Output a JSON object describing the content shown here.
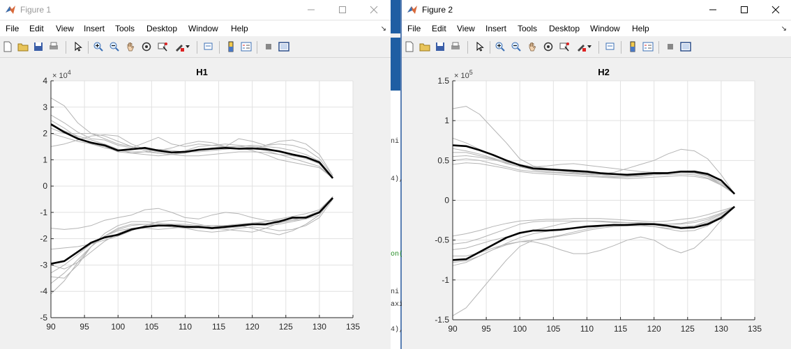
{
  "windows": [
    {
      "title": "Figure 1",
      "active": false,
      "menus": [
        "File",
        "Edit",
        "View",
        "Insert",
        "Tools",
        "Desktop",
        "Window",
        "Help"
      ],
      "plot": {
        "title": "H1",
        "exponent_base": "× 10",
        "exponent_power": "4",
        "xlim": [
          90,
          135
        ],
        "ylim": [
          -5,
          4
        ],
        "xticks": [
          90,
          95,
          100,
          105,
          110,
          115,
          120,
          125,
          130,
          135
        ],
        "xtick_labels": [
          "90",
          "95",
          "100",
          "105",
          "110",
          "115",
          "120",
          "125",
          "130",
          "135"
        ],
        "yticks": [
          -5,
          -4,
          -3,
          -2,
          -1,
          0,
          1,
          2,
          3,
          4
        ],
        "ytick_labels": [
          "-5",
          "-4",
          "-3",
          "-2",
          "-1",
          "0",
          "1",
          "2",
          "3",
          "4"
        ]
      }
    },
    {
      "title": "Figure 2",
      "active": true,
      "menus": [
        "File",
        "Edit",
        "View",
        "Insert",
        "Tools",
        "Desktop",
        "Window",
        "Help"
      ],
      "plot": {
        "title": "H2",
        "exponent_base": "× 10",
        "exponent_power": "5",
        "xlim": [
          90,
          135
        ],
        "ylim": [
          -1.5,
          1.5
        ],
        "xticks": [
          90,
          95,
          100,
          105,
          110,
          115,
          120,
          125,
          130,
          135
        ],
        "xtick_labels": [
          "90",
          "95",
          "100",
          "105",
          "110",
          "115",
          "120",
          "125",
          "130",
          "135"
        ],
        "yticks": [
          -1.5,
          -1,
          -0.5,
          0,
          0.5,
          1,
          1.5
        ],
        "ytick_labels": [
          "-1.5",
          "-1",
          "-0.5",
          "0",
          "0.5",
          "1",
          "1.5"
        ]
      }
    }
  ],
  "background_code_fragments": [
    "ni",
    "4),",
    "on(",
    "ni",
    "axi",
    "4),"
  ],
  "chart_data": [
    {
      "type": "line",
      "title": "H1",
      "xlim": [
        90,
        135
      ],
      "ylim": [
        -5,
        4
      ],
      "y_multiplier": "× 10^4",
      "grid": true,
      "colors": {
        "mean": "#000000",
        "individual": "#b4b4b4"
      },
      "x": [
        90,
        92,
        94,
        96,
        98,
        100,
        102,
        104,
        106,
        108,
        110,
        112,
        114,
        116,
        118,
        120,
        122,
        124,
        126,
        128,
        130,
        132
      ],
      "series": [
        {
          "role": "mean",
          "values": [
            2.35,
            2.05,
            1.8,
            1.65,
            1.55,
            1.35,
            1.4,
            1.45,
            1.35,
            1.28,
            1.3,
            1.38,
            1.42,
            1.45,
            1.42,
            1.43,
            1.4,
            1.32,
            1.2,
            1.1,
            0.9,
            0.3
          ]
        },
        {
          "role": "mean",
          "values": [
            -2.95,
            -2.85,
            -2.5,
            -2.15,
            -1.95,
            -1.85,
            -1.65,
            -1.55,
            -1.5,
            -1.5,
            -1.55,
            -1.55,
            -1.6,
            -1.55,
            -1.5,
            -1.45,
            -1.45,
            -1.35,
            -1.2,
            -1.2,
            -1.0,
            -0.45
          ]
        },
        {
          "role": "individual",
          "values": [
            3.35,
            3.05,
            2.4,
            2.0,
            1.8,
            1.6,
            1.5,
            1.35,
            1.25,
            1.2,
            1.15,
            1.15,
            1.2,
            1.25,
            1.3,
            1.3,
            1.28,
            1.2,
            1.15,
            1.05,
            0.85,
            0.3
          ]
        },
        {
          "role": "individual",
          "values": [
            2.7,
            2.4,
            2.05,
            1.8,
            1.75,
            1.55,
            1.45,
            1.65,
            1.85,
            1.6,
            1.5,
            1.6,
            1.55,
            1.5,
            1.8,
            1.7,
            1.55,
            1.6,
            1.55,
            1.4,
            1.05,
            0.4
          ]
        },
        {
          "role": "individual",
          "values": [
            2.0,
            1.85,
            1.7,
            1.6,
            1.5,
            1.3,
            1.25,
            1.2,
            1.15,
            1.2,
            1.3,
            1.35,
            1.4,
            1.45,
            1.5,
            1.55,
            1.5,
            1.45,
            1.35,
            1.2,
            0.95,
            0.35
          ]
        },
        {
          "role": "individual",
          "values": [
            1.5,
            1.6,
            1.75,
            1.9,
            1.95,
            1.9,
            1.6,
            1.4,
            1.3,
            1.25,
            1.35,
            1.5,
            1.55,
            1.6,
            1.55,
            1.5,
            1.45,
            1.3,
            1.2,
            1.05,
            0.85,
            0.3
          ]
        },
        {
          "role": "individual",
          "values": [
            2.3,
            2.1,
            1.9,
            1.75,
            1.6,
            1.4,
            1.25,
            1.3,
            1.4,
            1.35,
            1.3,
            1.3,
            1.35,
            1.4,
            1.45,
            1.35,
            1.2,
            1.0,
            0.9,
            0.8,
            0.7,
            0.3
          ]
        },
        {
          "role": "individual",
          "values": [
            2.2,
            2.0,
            2.0,
            2.0,
            1.9,
            1.7,
            1.5,
            1.4,
            1.35,
            1.45,
            1.6,
            1.7,
            1.65,
            1.5,
            1.4,
            1.4,
            1.55,
            1.7,
            1.75,
            1.6,
            1.2,
            0.4
          ]
        },
        {
          "role": "individual",
          "values": [
            2.5,
            2.2,
            1.85,
            1.6,
            1.45,
            1.35,
            1.3,
            1.3,
            1.25,
            1.2,
            1.25,
            1.35,
            1.45,
            1.5,
            1.5,
            1.45,
            1.35,
            1.2,
            1.05,
            0.9,
            0.75,
            0.3
          ]
        },
        {
          "role": "individual",
          "values": [
            -3.3,
            -3.0,
            -2.6,
            -2.2,
            -1.9,
            -1.65,
            -1.5,
            -1.45,
            -1.45,
            -1.5,
            -1.6,
            -1.7,
            -1.75,
            -1.7,
            -1.6,
            -1.55,
            -1.6,
            -1.7,
            -1.65,
            -1.5,
            -1.2,
            -0.5
          ]
        },
        {
          "role": "individual",
          "values": [
            -2.4,
            -2.35,
            -2.3,
            -2.2,
            -2.05,
            -1.9,
            -1.7,
            -1.5,
            -1.35,
            -1.3,
            -1.35,
            -1.45,
            -1.55,
            -1.6,
            -1.55,
            -1.45,
            -1.35,
            -1.25,
            -1.15,
            -1.05,
            -0.9,
            -0.4
          ]
        },
        {
          "role": "individual",
          "values": [
            -3.7,
            -3.3,
            -2.8,
            -2.3,
            -1.9,
            -1.7,
            -1.6,
            -1.55,
            -1.5,
            -1.45,
            -1.45,
            -1.5,
            -1.5,
            -1.5,
            -1.45,
            -1.45,
            -1.5,
            -1.45,
            -1.35,
            -1.25,
            -1.0,
            -0.4
          ]
        },
        {
          "role": "individual",
          "values": [
            -1.6,
            -1.65,
            -1.6,
            -1.5,
            -1.3,
            -1.2,
            -1.1,
            -0.9,
            -0.85,
            -1.0,
            -1.2,
            -1.25,
            -1.1,
            -1.0,
            -1.05,
            -1.2,
            -1.3,
            -1.35,
            -1.3,
            -1.15,
            -0.95,
            -0.4
          ]
        },
        {
          "role": "individual",
          "values": [
            -3.0,
            -3.15,
            -2.9,
            -2.5,
            -2.1,
            -1.8,
            -1.6,
            -1.6,
            -1.65,
            -1.6,
            -1.55,
            -1.55,
            -1.6,
            -1.65,
            -1.7,
            -1.75,
            -1.6,
            -1.4,
            -1.3,
            -1.25,
            -1.1,
            -0.45
          ]
        },
        {
          "role": "individual",
          "values": [
            -3.45,
            -3.5,
            -3.0,
            -2.3,
            -1.8,
            -1.5,
            -1.35,
            -1.35,
            -1.4,
            -1.45,
            -1.5,
            -1.55,
            -1.55,
            -1.5,
            -1.45,
            -1.4,
            -1.35,
            -1.3,
            -1.25,
            -1.2,
            -1.0,
            -0.4
          ]
        },
        {
          "role": "individual",
          "values": [
            -4.1,
            -3.6,
            -2.9,
            -2.3,
            -1.9,
            -1.6,
            -1.45,
            -1.45,
            -1.5,
            -1.55,
            -1.6,
            -1.6,
            -1.55,
            -1.5,
            -1.5,
            -1.6,
            -1.75,
            -1.85,
            -1.7,
            -1.45,
            -1.1,
            -0.45
          ]
        }
      ]
    },
    {
      "type": "line",
      "title": "H2",
      "xlim": [
        90,
        135
      ],
      "ylim": [
        -1.5,
        1.5
      ],
      "y_multiplier": "× 10^5",
      "grid": true,
      "colors": {
        "mean": "#000000",
        "individual": "#b4b4b4"
      },
      "x": [
        90,
        92,
        94,
        96,
        98,
        100,
        102,
        104,
        106,
        108,
        110,
        112,
        114,
        116,
        118,
        120,
        122,
        124,
        126,
        128,
        130,
        132
      ],
      "series": [
        {
          "role": "mean",
          "values": [
            0.69,
            0.68,
            0.63,
            0.57,
            0.5,
            0.44,
            0.4,
            0.39,
            0.38,
            0.37,
            0.36,
            0.34,
            0.33,
            0.32,
            0.33,
            0.34,
            0.34,
            0.36,
            0.36,
            0.33,
            0.25,
            0.08
          ]
        },
        {
          "role": "mean",
          "values": [
            -0.75,
            -0.74,
            -0.65,
            -0.56,
            -0.47,
            -0.41,
            -0.38,
            -0.38,
            -0.37,
            -0.35,
            -0.33,
            -0.32,
            -0.31,
            -0.31,
            -0.3,
            -0.3,
            -0.32,
            -0.35,
            -0.34,
            -0.3,
            -0.22,
            -0.08
          ]
        },
        {
          "role": "individual",
          "values": [
            1.15,
            1.18,
            1.08,
            0.9,
            0.72,
            0.52,
            0.43,
            0.4,
            0.38,
            0.36,
            0.35,
            0.33,
            0.32,
            0.31,
            0.32,
            0.33,
            0.34,
            0.35,
            0.35,
            0.31,
            0.22,
            0.08
          ]
        },
        {
          "role": "individual",
          "values": [
            0.78,
            0.72,
            0.64,
            0.56,
            0.5,
            0.45,
            0.42,
            0.4,
            0.38,
            0.36,
            0.34,
            0.33,
            0.35,
            0.4,
            0.45,
            0.5,
            0.58,
            0.64,
            0.62,
            0.52,
            0.32,
            0.08
          ]
        },
        {
          "role": "individual",
          "values": [
            0.5,
            0.52,
            0.5,
            0.46,
            0.42,
            0.38,
            0.36,
            0.35,
            0.34,
            0.33,
            0.32,
            0.3,
            0.29,
            0.29,
            0.3,
            0.32,
            0.34,
            0.36,
            0.35,
            0.3,
            0.2,
            0.08
          ]
        },
        {
          "role": "individual",
          "values": [
            0.6,
            0.6,
            0.56,
            0.52,
            0.46,
            0.42,
            0.39,
            0.38,
            0.37,
            0.35,
            0.33,
            0.32,
            0.3,
            0.3,
            0.31,
            0.32,
            0.32,
            0.33,
            0.32,
            0.28,
            0.2,
            0.08
          ]
        },
        {
          "role": "individual",
          "values": [
            0.65,
            0.62,
            0.58,
            0.53,
            0.48,
            0.44,
            0.42,
            0.43,
            0.45,
            0.46,
            0.44,
            0.42,
            0.4,
            0.38,
            0.36,
            0.35,
            0.35,
            0.36,
            0.37,
            0.34,
            0.25,
            0.08
          ]
        },
        {
          "role": "individual",
          "values": [
            0.45,
            0.47,
            0.46,
            0.43,
            0.4,
            0.36,
            0.34,
            0.33,
            0.32,
            0.31,
            0.3,
            0.29,
            0.28,
            0.27,
            0.28,
            0.29,
            0.3,
            0.31,
            0.3,
            0.27,
            0.19,
            0.08
          ]
        },
        {
          "role": "individual",
          "values": [
            0.55,
            0.56,
            0.54,
            0.51,
            0.47,
            0.42,
            0.38,
            0.36,
            0.35,
            0.34,
            0.33,
            0.32,
            0.32,
            0.33,
            0.34,
            0.35,
            0.35,
            0.35,
            0.34,
            0.3,
            0.22,
            0.08
          ]
        },
        {
          "role": "individual",
          "values": [
            -1.45,
            -1.35,
            -1.15,
            -0.95,
            -0.75,
            -0.58,
            -0.5,
            -0.47,
            -0.44,
            -0.4,
            -0.36,
            -0.33,
            -0.31,
            -0.3,
            -0.3,
            -0.31,
            -0.32,
            -0.33,
            -0.32,
            -0.28,
            -0.2,
            -0.08
          ]
        },
        {
          "role": "individual",
          "values": [
            -0.45,
            -0.42,
            -0.38,
            -0.33,
            -0.29,
            -0.26,
            -0.25,
            -0.24,
            -0.24,
            -0.23,
            -0.23,
            -0.23,
            -0.24,
            -0.25,
            -0.26,
            -0.27,
            -0.26,
            -0.24,
            -0.22,
            -0.18,
            -0.13,
            -0.08
          ]
        },
        {
          "role": "individual",
          "values": [
            -0.62,
            -0.6,
            -0.55,
            -0.5,
            -0.46,
            -0.42,
            -0.38,
            -0.34,
            -0.3,
            -0.27,
            -0.26,
            -0.26,
            -0.27,
            -0.28,
            -0.29,
            -0.3,
            -0.3,
            -0.29,
            -0.26,
            -0.22,
            -0.16,
            -0.08
          ]
        },
        {
          "role": "individual",
          "values": [
            -0.7,
            -0.7,
            -0.66,
            -0.6,
            -0.55,
            -0.52,
            -0.5,
            -0.48,
            -0.45,
            -0.42,
            -0.38,
            -0.35,
            -0.33,
            -0.32,
            -0.32,
            -0.33,
            -0.35,
            -0.35,
            -0.32,
            -0.26,
            -0.18,
            -0.08
          ]
        },
        {
          "role": "individual",
          "values": [
            -0.82,
            -0.78,
            -0.7,
            -0.62,
            -0.56,
            -0.52,
            -0.52,
            -0.56,
            -0.62,
            -0.67,
            -0.67,
            -0.63,
            -0.57,
            -0.5,
            -0.46,
            -0.5,
            -0.6,
            -0.66,
            -0.6,
            -0.45,
            -0.25,
            -0.08
          ]
        },
        {
          "role": "individual",
          "values": [
            -0.55,
            -0.53,
            -0.48,
            -0.42,
            -0.36,
            -0.3,
            -0.27,
            -0.26,
            -0.26,
            -0.26,
            -0.26,
            -0.27,
            -0.28,
            -0.28,
            -0.28,
            -0.29,
            -0.3,
            -0.3,
            -0.28,
            -0.24,
            -0.17,
            -0.08
          ]
        },
        {
          "role": "individual",
          "values": [
            -0.78,
            -0.76,
            -0.7,
            -0.62,
            -0.54,
            -0.47,
            -0.42,
            -0.39,
            -0.37,
            -0.35,
            -0.33,
            -0.32,
            -0.31,
            -0.3,
            -0.31,
            -0.33,
            -0.36,
            -0.39,
            -0.38,
            -0.32,
            -0.22,
            -0.08
          ]
        }
      ]
    }
  ]
}
